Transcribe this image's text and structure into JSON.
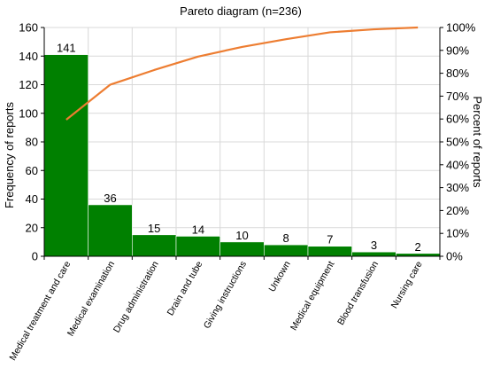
{
  "chart_data": {
    "type": "bar",
    "title": "Pareto diagram (n=236)",
    "ylabel": "Frequency of reports",
    "y2label": "Percent of reports",
    "categories": [
      "Medical treatment and care",
      "Medical examination",
      "Drug administration",
      "Drain and tube",
      "Giving instructions",
      "Unkown",
      "Medical equipment",
      "Blood transfusion",
      "Nursing care"
    ],
    "series": [
      {
        "type": "bar",
        "axis": "left",
        "values": [
          141,
          36,
          15,
          14,
          10,
          8,
          7,
          3,
          2
        ]
      },
      {
        "type": "line",
        "axis": "right",
        "values": [
          59.7,
          75.0,
          81.4,
          87.3,
          91.5,
          94.9,
          97.9,
          99.2,
          100.0
        ]
      }
    ],
    "ylim": [
      0,
      160
    ],
    "yticks": [
      0,
      20,
      40,
      60,
      80,
      100,
      120,
      140,
      160
    ],
    "y2lim": [
      0,
      100
    ],
    "y2ticks": [
      "0%",
      "10%",
      "20%",
      "30%",
      "40%",
      "50%",
      "60%",
      "70%",
      "80%",
      "90%",
      "100%"
    ],
    "grid": true,
    "legend": "none",
    "colors": {
      "bar": "#008000",
      "line": "#ed7d31",
      "grid": "#d9d9d9"
    }
  }
}
